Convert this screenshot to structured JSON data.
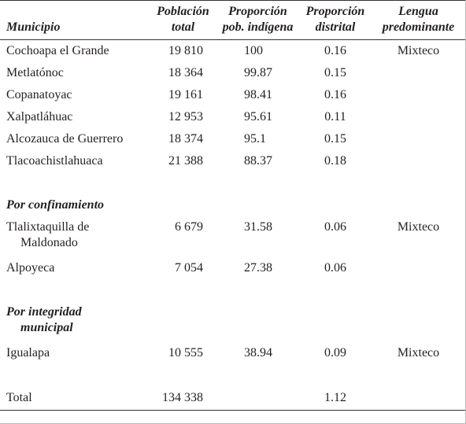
{
  "table": {
    "header": {
      "municipio": "Municipio",
      "poblacion": "Población total",
      "indigena": "Proporción pob. indígena",
      "distrital": "Proporción distrital",
      "lengua": "Lengua predominante"
    },
    "sections": [
      {
        "rows": [
          {
            "municipio": "Cochoapa el Grande",
            "poblacion": "19 810",
            "indigena": "100",
            "distrital": "0.16",
            "lengua": "Mixteco"
          },
          {
            "municipio": "Metlatónoc",
            "poblacion": "18 364",
            "indigena": "99.87",
            "distrital": "0.15"
          },
          {
            "municipio": "Copanatoyac",
            "poblacion": "19 161",
            "indigena": "98.41",
            "distrital": "0.16"
          },
          {
            "municipio": "Xalpatláhuac",
            "poblacion": "12 953",
            "indigena": "95.61",
            "distrital": "0.11"
          },
          {
            "municipio": "Alcozauca de Guerrero",
            "poblacion": "18 374",
            "indigena": "95.1",
            "distrital": "0.15"
          },
          {
            "municipio": "Tlacoachistlahuaca",
            "poblacion": "21 388",
            "indigena": "88.37",
            "distrital": "0.18"
          }
        ]
      },
      {
        "title": "Por confinamiento",
        "rows": [
          {
            "municipio": "Tlalixtaquilla de Maldonado",
            "poblacion": "6 679",
            "indigena": "31.58",
            "distrital": "0.06",
            "lengua": "Mixteco"
          },
          {
            "municipio": "Alpoyeca",
            "poblacion": "7 054",
            "indigena": "27.38",
            "distrital": "0.06"
          }
        ]
      },
      {
        "title": "Por integridad municipal",
        "rows": [
          {
            "municipio": "Igualapa",
            "poblacion": "10 555",
            "indigena": "38.94",
            "distrital": "0.09",
            "lengua": "Mixteco"
          }
        ]
      }
    ],
    "total": {
      "municipio": "Total",
      "poblacion": "134 338",
      "distrital": "1.12"
    }
  }
}
